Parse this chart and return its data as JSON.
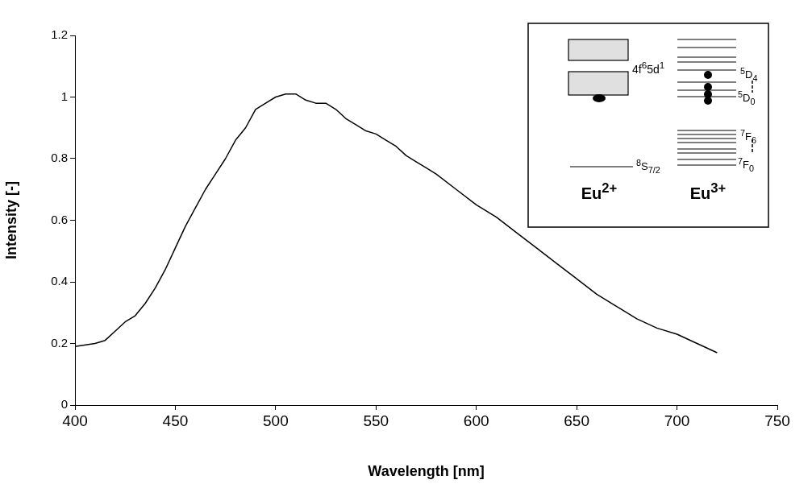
{
  "chart_data": {
    "type": "line",
    "xlabel": "Wavelength [nm]",
    "ylabel": "Intensity [-]",
    "xlim": [
      400,
      750
    ],
    "xticks": [
      400,
      450,
      500,
      550,
      600,
      650,
      700,
      750
    ],
    "ylim": [
      0,
      1.2
    ],
    "yticks": [
      0,
      0.2,
      0.4,
      0.6,
      0.8,
      1,
      1.2
    ],
    "grid": false,
    "legend": false,
    "marker": "none",
    "line_style": "solid",
    "series": [
      {
        "color": "#000000",
        "x": [
          400,
          410,
          415,
          420,
          425,
          430,
          435,
          440,
          445,
          450,
          455,
          460,
          465,
          470,
          475,
          480,
          485,
          490,
          495,
          500,
          505,
          510,
          515,
          520,
          525,
          530,
          535,
          540,
          545,
          550,
          555,
          560,
          565,
          570,
          575,
          580,
          590,
          600,
          610,
          620,
          630,
          640,
          650,
          660,
          670,
          680,
          690,
          700,
          710,
          720
        ],
        "values": [
          0.19,
          0.2,
          0.21,
          0.24,
          0.27,
          0.29,
          0.33,
          0.38,
          0.44,
          0.51,
          0.58,
          0.64,
          0.7,
          0.75,
          0.8,
          0.86,
          0.9,
          0.96,
          0.98,
          1.0,
          1.01,
          1.01,
          0.99,
          0.98,
          0.98,
          0.96,
          0.93,
          0.91,
          0.89,
          0.88,
          0.86,
          0.84,
          0.81,
          0.79,
          0.77,
          0.75,
          0.7,
          0.65,
          0.61,
          0.56,
          0.51,
          0.46,
          0.41,
          0.36,
          0.32,
          0.28,
          0.25,
          0.23,
          0.2,
          0.17
        ]
      }
    ],
    "annotations": [
      "4f$^{6}$5d$^{1}$",
      "$^{5}$D$_{4}$",
      "$^{5}$D$_{0}$",
      "$^{7}$F$_{6}$",
      "$^{7}$F$_{0}$",
      "$^{8}$S$_{7/2}$",
      "Eu$^{2+}$",
      "Eu$^{3+}$"
    ]
  }
}
